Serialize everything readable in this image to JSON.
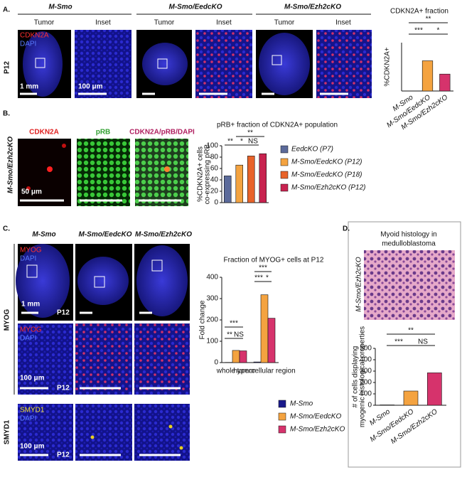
{
  "figure": {
    "panels": [
      "A.",
      "B.",
      "C.",
      "D."
    ],
    "a": {
      "headers": [
        "M-Smo",
        "M-Smo/EedcKO",
        "M-Smo/Ezh2cKO"
      ],
      "subheaders": [
        "Tumor",
        "Inset",
        "Tumor",
        "Inset",
        "Tumor",
        "Inset"
      ],
      "stains": [
        "CDKN2A",
        "DAPI"
      ],
      "age": "P12",
      "scales": [
        "1 mm",
        "100 μm"
      ]
    },
    "b": {
      "row": "M-Smo/Ezh2cKO",
      "channels": [
        "CDKN2A",
        "pRB",
        "CDKN2A/pRB/DAPI"
      ],
      "scale": "50 μm"
    },
    "c": {
      "headers": [
        "M-Smo",
        "M-Smo/EedcKO",
        "M-Smo/Ezh2cKO"
      ],
      "rows": [
        "MYOG",
        "SMYD1"
      ],
      "stains": [
        "MYOG",
        "DAPI",
        "SMYD1"
      ],
      "age": "P12",
      "scales": [
        "1 mm",
        "100 μm"
      ]
    },
    "d": {
      "title": [
        "Myoid histology in",
        "medulloblastoma"
      ],
      "row": "M-Smo/Ezh2cKO"
    }
  },
  "chart_data": [
    {
      "type": "bar",
      "title": "CDKN2A+ fraction",
      "ylabel": [
        "%CDKN2A+"
      ],
      "categories": [
        "M-Smo",
        "M-Smo/EedcKO",
        "M-Smo/Ezh2cKO"
      ],
      "values": [
        0,
        50,
        28
      ],
      "colors": [
        "#222222",
        "#f4a340",
        "#d6336c"
      ],
      "ylim": [
        0,
        80
      ],
      "annotations": [
        "**",
        "***",
        "*"
      ]
    },
    {
      "type": "bar",
      "title": "pRB+ fraction of CDKN2A+ population",
      "ylabel": [
        "%CDKN2A+ cells",
        "co-expressing pRB"
      ],
      "categories": [
        "EedcKO (P7)",
        "M-Smo/EedcKO (P12)",
        "M-Smo/EedcKO (P18)",
        "M-Smo/Ezh2cKO (P12)"
      ],
      "values": [
        47,
        66,
        82,
        86
      ],
      "colors": [
        "#5b6a9a",
        "#f4a340",
        "#e8632a",
        "#c8224f"
      ],
      "ylim": [
        0,
        100
      ],
      "yticks": [
        0,
        20,
        40,
        60,
        80,
        100
      ],
      "annotations": [
        "**",
        "*",
        "NS",
        "**"
      ]
    },
    {
      "type": "grouped-bar",
      "title": "Fraction of MYOG+ cells at P12",
      "ylabel": [
        "Fold change"
      ],
      "categories": [
        "whole tumor",
        "hypercellular region"
      ],
      "series": [
        {
          "name": "M-Smo",
          "color": "#1a1a8c",
          "values": [
            1,
            3
          ]
        },
        {
          "name": "M-Smo/EedcKO",
          "color": "#f4a340",
          "values": [
            57,
            318
          ]
        },
        {
          "name": "M-Smo/Ezh2cKO",
          "color": "#d6336c",
          "values": [
            55,
            208
          ]
        }
      ],
      "ylim": [
        0,
        400
      ],
      "yticks": [
        0,
        100,
        200,
        300,
        400
      ],
      "annotations": [
        "**",
        "NS",
        "***",
        "***",
        "*",
        "***"
      ]
    },
    {
      "type": "bar",
      "ylabel": [
        "# of cells displaying",
        "myogenic histological properties"
      ],
      "categories": [
        "M-Smo",
        "M-Smo/EedcKO",
        "M-Smo/Ezh2cKO"
      ],
      "values": [
        3,
        125,
        285
      ],
      "colors": [
        "#222222",
        "#f4a340",
        "#d6336c"
      ],
      "ylim": [
        0,
        500
      ],
      "yticks": [
        0,
        100,
        200,
        300,
        400,
        500
      ],
      "annotations": [
        "**",
        "***",
        "NS"
      ]
    }
  ]
}
